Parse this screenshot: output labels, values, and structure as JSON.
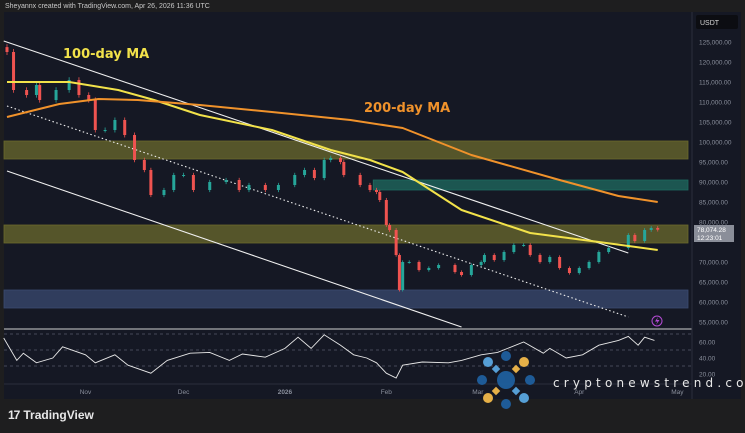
{
  "header": {
    "credit": "Sheyannx created with TradingView.com, Apr 26, 2026 11:36 UTC"
  },
  "footer": {
    "brand": "TradingView"
  },
  "watermark": {
    "text": "cryptonewstrend.com"
  },
  "price_axis": {
    "currency": "USDT",
    "last_price": "78,074.28",
    "countdown": "12:23:01"
  },
  "colors": {
    "up": "#26a69a",
    "down": "#ef5350",
    "ma100": "#f2e24a",
    "ma200": "#f0922b",
    "background": "#151824"
  },
  "chart_data": [
    {
      "type": "candlestick",
      "title": "",
      "annotations": [
        "100-day MA",
        "200-day MA"
      ],
      "y_ticks": [
        "125,000.00",
        "120,000.00",
        "115,000.00",
        "110,000.00",
        "105,000.00",
        "100,000.00",
        "95,000.00",
        "90,000.00",
        "85,000.00",
        "80,000.00",
        "70,000.00",
        "65,000.00",
        "60,000.00",
        "55,000.00"
      ],
      "x_ticks": [
        "Nov",
        "Dec",
        "2026",
        "Feb",
        "Mar",
        "Apr",
        "May"
      ],
      "ylim": [
        55000,
        125000
      ],
      "grid": false,
      "closes": [
        [
          "2025-10-08",
          122500
        ],
        [
          "2025-10-10",
          113000
        ],
        [
          "2025-10-14",
          111750
        ],
        [
          "2025-10-17",
          114250
        ],
        [
          "2025-10-18",
          110500
        ],
        [
          "2025-10-23",
          113000
        ],
        [
          "2025-10-27",
          115500
        ],
        [
          "2025-10-30",
          111750
        ],
        [
          "2025-11-02",
          110500
        ],
        [
          "2025-11-04",
          103000
        ],
        [
          "2025-11-07",
          103000
        ],
        [
          "2025-11-10",
          105500
        ],
        [
          "2025-11-13",
          101750
        ],
        [
          "2025-11-16",
          95500
        ],
        [
          "2025-11-19",
          93000
        ],
        [
          "2025-11-21",
          86750
        ],
        [
          "2025-11-25",
          88000
        ],
        [
          "2025-11-28",
          91750
        ],
        [
          "2025-12-01",
          91750
        ],
        [
          "2025-12-04",
          88000
        ],
        [
          "2025-12-09",
          90000
        ],
        [
          "2025-12-14",
          90500
        ],
        [
          "2025-12-18",
          88000
        ],
        [
          "2025-12-21",
          89250
        ],
        [
          "2025-12-26",
          88000
        ],
        [
          "2025-12-30",
          89250
        ],
        [
          "2026-01-04",
          91750
        ],
        [
          "2026-01-07",
          93000
        ],
        [
          "2026-01-10",
          91000
        ],
        [
          "2026-01-13",
          95500
        ],
        [
          "2026-01-15",
          96000
        ],
        [
          "2026-01-18",
          95000
        ],
        [
          "2026-01-19",
          91750
        ],
        [
          "2026-01-24",
          89250
        ],
        [
          "2026-01-27",
          88000
        ],
        [
          "2026-01-29",
          87500
        ],
        [
          "2026-01-30",
          85500
        ],
        [
          "2026-02-01",
          79250
        ],
        [
          "2026-02-02",
          78000
        ],
        [
          "2026-02-04",
          71750
        ],
        [
          "2026-02-05",
          63000
        ],
        [
          "2026-02-06",
          70000
        ],
        [
          "2026-02-08",
          70000
        ],
        [
          "2026-02-11",
          68000
        ],
        [
          "2026-02-14",
          68500
        ],
        [
          "2026-02-17",
          69250
        ],
        [
          "2026-02-22",
          67500
        ],
        [
          "2026-02-24",
          66750
        ],
        [
          "2026-02-27",
          69250
        ],
        [
          "2026-03-02",
          70000
        ],
        [
          "2026-03-03",
          71750
        ],
        [
          "2026-03-06",
          70500
        ],
        [
          "2026-03-09",
          72500
        ],
        [
          "2026-03-12",
          74250
        ],
        [
          "2026-03-15",
          74250
        ],
        [
          "2026-03-17",
          71750
        ],
        [
          "2026-03-20",
          70000
        ],
        [
          "2026-03-23",
          71250
        ],
        [
          "2026-03-26",
          68500
        ],
        [
          "2026-03-29",
          67250
        ],
        [
          "2026-04-01",
          68500
        ],
        [
          "2026-04-04",
          70000
        ],
        [
          "2026-04-07",
          72500
        ],
        [
          "2026-04-10",
          73500
        ],
        [
          "2026-04-16",
          76750
        ],
        [
          "2026-04-18",
          75250
        ],
        [
          "2026-04-21",
          78000
        ],
        [
          "2026-04-23",
          78500
        ],
        [
          "2026-04-25",
          78074.28
        ]
      ],
      "ma100": [
        [
          "2025-10-08",
          115000
        ],
        [
          "2025-10-27",
          115000
        ],
        [
          "2025-11-11",
          113000
        ],
        [
          "2025-11-22",
          110500
        ],
        [
          "2025-12-06",
          106750
        ],
        [
          "2025-12-28",
          103000
        ],
        [
          "2026-01-15",
          98000
        ],
        [
          "2026-01-27",
          95500
        ],
        [
          "2026-02-06",
          92500
        ],
        [
          "2026-02-24",
          83000
        ],
        [
          "2026-03-17",
          77250
        ],
        [
          "2026-04-07",
          75000
        ],
        [
          "2026-04-25",
          73000
        ]
      ],
      "ma200": [
        [
          "2025-10-08",
          106250
        ],
        [
          "2025-10-24",
          109500
        ],
        [
          "2025-11-05",
          110750
        ],
        [
          "2025-11-17",
          110500
        ],
        [
          "2025-12-06",
          109250
        ],
        [
          "2025-12-28",
          107500
        ],
        [
          "2026-01-21",
          105500
        ],
        [
          "2026-02-06",
          103500
        ],
        [
          "2026-02-27",
          96750
        ],
        [
          "2026-03-26",
          90500
        ],
        [
          "2026-04-13",
          86500
        ],
        [
          "2026-04-25",
          85000
        ]
      ],
      "zones": [
        {
          "color": "#6b6a2c",
          "from": 95750,
          "to": 100250
        },
        {
          "color": "#1f6b60",
          "from": 88000,
          "to": 90500,
          "start": "2026-01-28"
        },
        {
          "color": "#6b6a2c",
          "from": 74750,
          "to": 79250
        },
        {
          "color": "#3a4a70",
          "from": 58500,
          "to": 63000
        }
      ],
      "trendlines": [
        {
          "style": "solid",
          "points": [
            [
              "2025-10-07",
              125250
            ],
            [
              "2026-04-16",
              72250
            ]
          ]
        },
        {
          "style": "solid",
          "points": [
            [
              "2025-10-08",
              92750
            ],
            [
              "2026-02-24",
              53750
            ]
          ]
        },
        {
          "style": "dotted",
          "points": [
            [
              "2025-10-08",
              109000
            ],
            [
              "2026-04-16",
              56250
            ]
          ]
        }
      ]
    },
    {
      "type": "line",
      "title": "",
      "y_ticks": [
        "60.00",
        "40.00",
        "20.00"
      ],
      "levels": [
        70,
        50,
        30
      ],
      "values": [
        [
          "2025-10-07",
          65
        ],
        [
          "2025-10-11",
          37
        ],
        [
          "2025-10-13",
          46
        ],
        [
          "2025-10-17",
          34
        ],
        [
          "2025-10-22",
          40
        ],
        [
          "2025-10-25",
          54
        ],
        [
          "2025-11-01",
          44
        ],
        [
          "2025-11-04",
          34
        ],
        [
          "2025-11-10",
          44
        ],
        [
          "2025-11-14",
          31
        ],
        [
          "2025-11-21",
          21
        ],
        [
          "2025-11-26",
          37
        ],
        [
          "2025-12-03",
          46
        ],
        [
          "2025-12-09",
          47
        ],
        [
          "2025-12-15",
          37
        ],
        [
          "2025-12-19",
          45
        ],
        [
          "2025-12-26",
          41
        ],
        [
          "2026-01-01",
          52
        ],
        [
          "2026-01-05",
          66
        ],
        [
          "2026-01-09",
          52
        ],
        [
          "2026-01-13",
          69
        ],
        [
          "2026-01-18",
          56
        ],
        [
          "2026-01-22",
          44
        ],
        [
          "2026-01-26",
          40
        ],
        [
          "2026-01-29",
          34
        ],
        [
          "2026-02-01",
          21
        ],
        [
          "2026-02-04",
          15
        ],
        [
          "2026-02-06",
          31
        ],
        [
          "2026-02-12",
          35
        ],
        [
          "2026-02-20",
          34
        ],
        [
          "2026-02-24",
          37
        ],
        [
          "2026-03-02",
          44
        ],
        [
          "2026-03-07",
          47
        ],
        [
          "2026-03-15",
          60
        ],
        [
          "2026-03-21",
          46
        ],
        [
          "2026-03-23",
          52
        ],
        [
          "2026-03-28",
          40
        ],
        [
          "2026-04-02",
          44
        ],
        [
          "2026-04-07",
          56
        ],
        [
          "2026-04-13",
          62
        ],
        [
          "2026-04-16",
          67
        ],
        [
          "2026-04-19",
          56
        ],
        [
          "2026-04-21",
          66
        ],
        [
          "2026-04-24",
          62
        ]
      ]
    }
  ]
}
